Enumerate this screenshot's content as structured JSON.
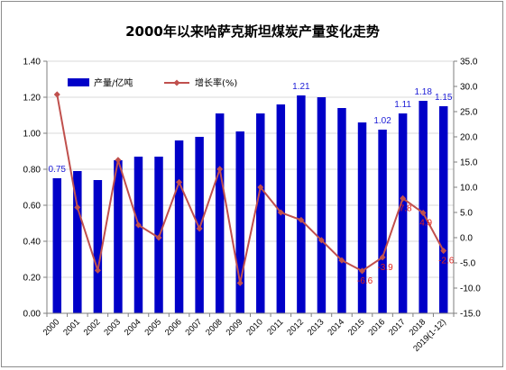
{
  "chart_data": {
    "type": "bar+line",
    "title": "2000年以来哈萨克斯坦煤炭产量变化走势",
    "categories": [
      "2000",
      "2001",
      "2002",
      "2003",
      "2004",
      "2005",
      "2006",
      "2007",
      "2008",
      "2009",
      "2010",
      "2011",
      "2012",
      "2013",
      "2014",
      "2015",
      "2016",
      "2017",
      "2018",
      "2019(1-12)"
    ],
    "series": [
      {
        "name": "产量/亿吨",
        "kind": "bar",
        "axis": "left",
        "color": "#0000c8",
        "values": [
          0.75,
          0.79,
          0.74,
          0.85,
          0.87,
          0.87,
          0.96,
          0.98,
          1.11,
          1.01,
          1.11,
          1.16,
          1.21,
          1.2,
          1.14,
          1.06,
          1.02,
          1.11,
          1.18,
          1.15
        ]
      },
      {
        "name": "增长率(%)",
        "kind": "line",
        "axis": "right",
        "color": "#c0504d",
        "values": [
          28.4,
          6.0,
          -6.5,
          15.4,
          2.5,
          0.0,
          11.0,
          1.8,
          13.6,
          -9.0,
          10.0,
          5.0,
          3.5,
          -0.5,
          -4.5,
          -6.6,
          -3.9,
          7.8,
          4.9,
          -2.6
        ]
      }
    ],
    "bar_labels": [
      {
        "index": 0,
        "text": "0.75"
      },
      {
        "index": 12,
        "text": "1.21"
      },
      {
        "index": 16,
        "text": "1.02"
      },
      {
        "index": 17,
        "text": "1.11"
      },
      {
        "index": 18,
        "text": "1.18"
      },
      {
        "index": 19,
        "text": "1.15"
      }
    ],
    "line_labels": [
      {
        "index": 15,
        "text": "-6.6"
      },
      {
        "index": 16,
        "text": "-3.9"
      },
      {
        "index": 17,
        "text": "7.8"
      },
      {
        "index": 18,
        "text": "4.9"
      },
      {
        "index": 19,
        "text": "-2.6"
      }
    ],
    "y_left": {
      "min": 0,
      "max": 1.4,
      "step": 0.2,
      "ticks": [
        "0.00",
        "0.20",
        "0.40",
        "0.60",
        "0.80",
        "1.00",
        "1.20",
        "1.40"
      ]
    },
    "y_right": {
      "min": -15,
      "max": 35,
      "step": 5,
      "ticks": [
        "-15.0",
        "-10.0",
        "-5.0",
        "0.0",
        "5.0",
        "10.0",
        "15.0",
        "20.0",
        "25.0",
        "30.0",
        "35.0"
      ]
    },
    "grid": true,
    "legend": {
      "position": "top-left",
      "entries": [
        "产量/亿吨",
        "增长率(%)"
      ]
    }
  }
}
